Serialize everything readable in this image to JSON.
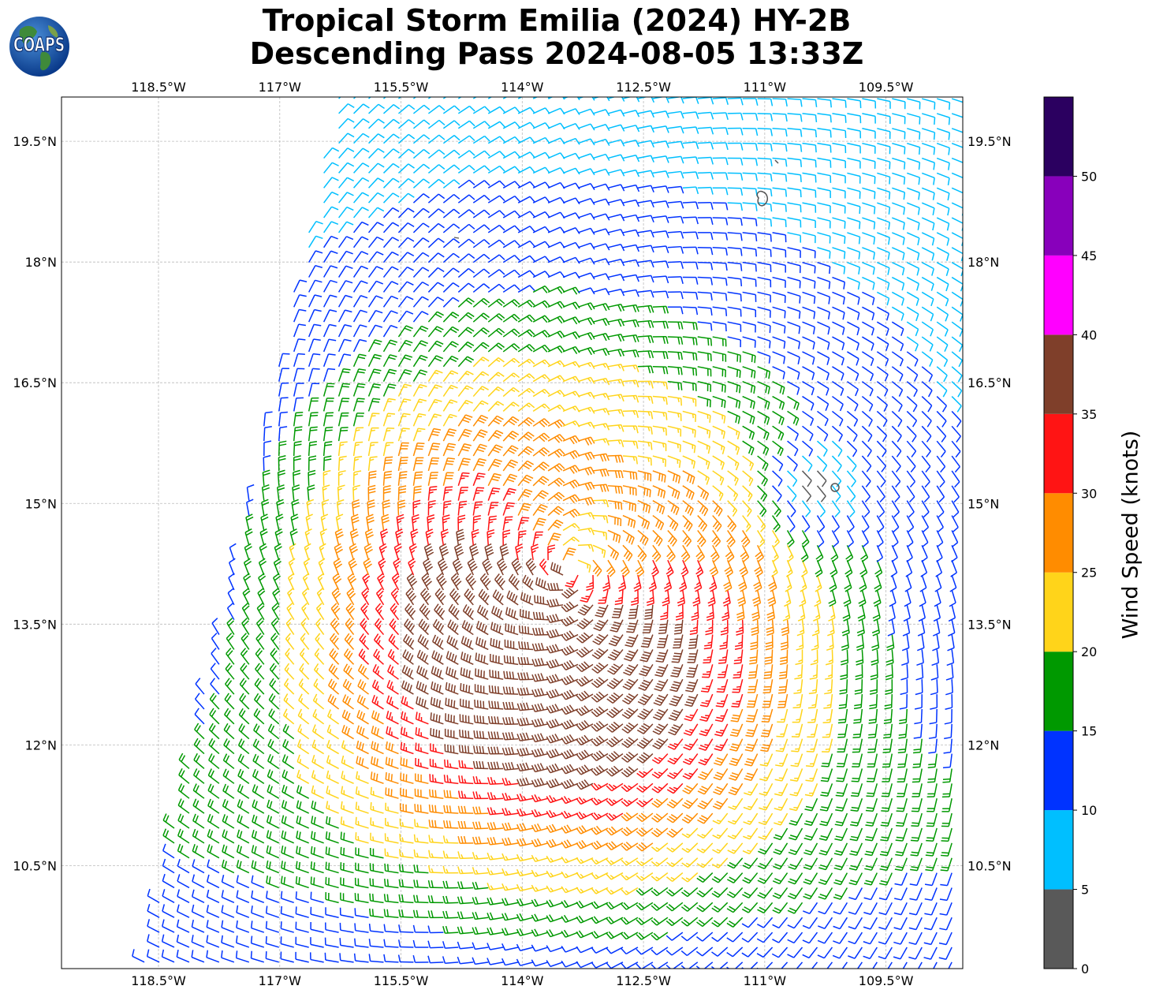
{
  "title": {
    "line1": "Tropical Storm Emilia (2024) HY-2B",
    "line2": "Descending Pass 2024-08-05 13:33Z"
  },
  "logo": {
    "text": "COAPS",
    "icon": "globe-logo"
  },
  "map": {
    "lon_range": [
      -119.7,
      -108.55
    ],
    "lat_range": [
      9.22,
      20.05
    ],
    "x_ticks": [
      {
        "lon": -118.5,
        "label": "118.5°W"
      },
      {
        "lon": -117.0,
        "label": "117°W"
      },
      {
        "lon": -115.5,
        "label": "115.5°W"
      },
      {
        "lon": -114.0,
        "label": "114°W"
      },
      {
        "lon": -112.5,
        "label": "112.5°W"
      },
      {
        "lon": -111.0,
        "label": "111°W"
      },
      {
        "lon": -109.5,
        "label": "109.5°W"
      }
    ],
    "y_ticks": [
      {
        "lat": 19.5,
        "label": "19.5°N"
      },
      {
        "lat": 18.0,
        "label": "18°N"
      },
      {
        "lat": 16.5,
        "label": "16.5°N"
      },
      {
        "lat": 15.0,
        "label": "15°N"
      },
      {
        "lat": 13.5,
        "label": "13.5°N"
      },
      {
        "lat": 12.0,
        "label": "12°N"
      },
      {
        "lat": 10.5,
        "label": "10.5°N"
      }
    ],
    "gridlines": true,
    "storm_center": {
      "lon": -113.4,
      "lat": 14.2
    },
    "swath_west_edge": [
      [
        -116.3,
        20.05
      ],
      [
        -118.7,
        9.22
      ]
    ]
  },
  "colorbar": {
    "label": "Wind Speed (knots)",
    "bins": [
      {
        "min": 0,
        "max": 5,
        "color": "#595959"
      },
      {
        "min": 5,
        "max": 10,
        "color": "#00bfff"
      },
      {
        "min": 10,
        "max": 15,
        "color": "#0033ff"
      },
      {
        "min": 15,
        "max": 20,
        "color": "#009900"
      },
      {
        "min": 20,
        "max": 25,
        "color": "#ffd41a"
      },
      {
        "min": 25,
        "max": 30,
        "color": "#ff8c00"
      },
      {
        "min": 30,
        "max": 35,
        "color": "#ff1414"
      },
      {
        "min": 35,
        "max": 40,
        "color": "#7f3f2a"
      },
      {
        "min": 40,
        "max": 45,
        "color": "#ff00ff"
      },
      {
        "min": 45,
        "max": 50,
        "color": "#8800bb"
      },
      {
        "min": 50,
        "max": 55,
        "color": "#2b0060"
      }
    ],
    "tick_labels": [
      "0",
      "5",
      "10",
      "15",
      "20",
      "25",
      "30",
      "35",
      "40",
      "45",
      "50"
    ]
  }
}
